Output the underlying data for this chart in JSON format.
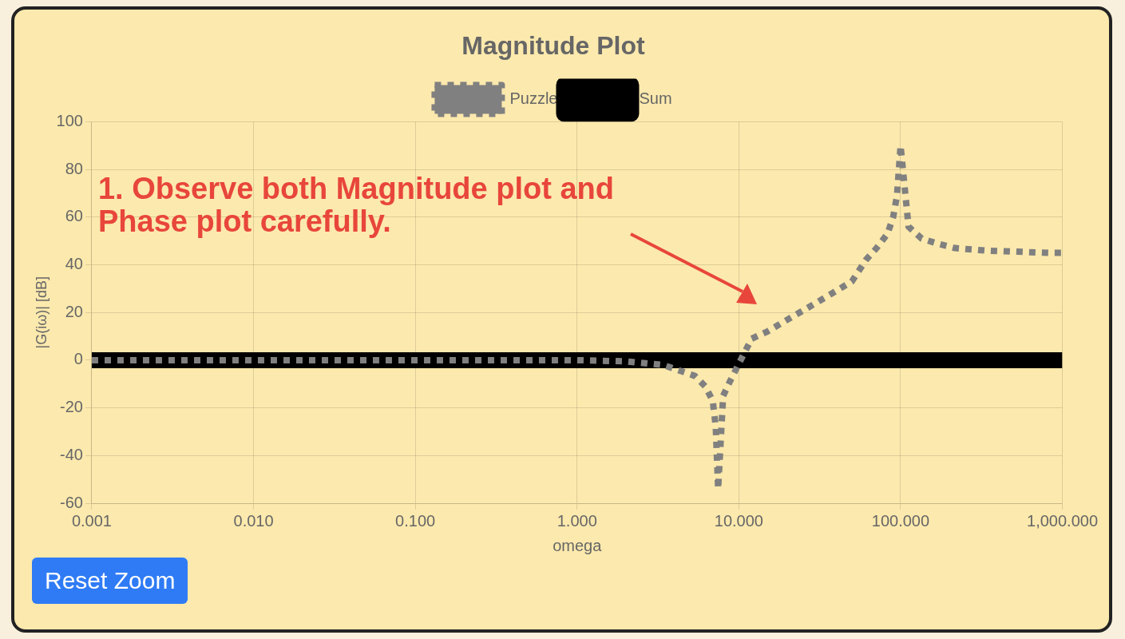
{
  "chart_data": {
    "type": "line",
    "title": "Magnitude Plot",
    "xlabel": "omega",
    "ylabel": "|G(iω)| [dB]",
    "log": "x",
    "xlim": [
      0.001,
      1000
    ],
    "ylim": [
      -60,
      100
    ],
    "xticks": [
      0.001,
      {
        "value": 0.01,
        "label": "0.010"
      },
      {
        "value": 0.1,
        "label": "0.100"
      },
      {
        "value": 1,
        "label": "1.000"
      },
      {
        "value": 10,
        "label": "10.000"
      },
      {
        "value": 100,
        "label": "100.000"
      },
      {
        "value": 1000,
        "label": "1,000.000"
      }
    ],
    "yticks": [
      -60,
      -40,
      -20,
      0,
      20,
      40,
      60,
      80,
      100
    ],
    "grid": true,
    "legend": "top",
    "marker": "none",
    "series": [
      {
        "name": "Puzzle",
        "color": "#808080",
        "line_style": "dashed",
        "x": [
          0.001,
          0.01,
          0.1,
          1,
          2,
          3.4,
          5.35,
          6.2,
          6.9,
          7.2,
          7.45,
          8.0,
          8.8,
          10,
          12,
          15,
          20,
          30,
          50,
          61,
          71,
          83,
          90,
          95,
          100,
          112,
          135,
          167,
          217,
          330,
          830,
          1000
        ],
        "values": [
          0,
          0,
          0,
          0,
          -0.5,
          -2,
          -6.6,
          -11,
          -17,
          -28,
          -54,
          -15,
          -9,
          -1.5,
          9,
          12,
          17,
          24,
          33,
          42,
          47,
          53,
          60,
          69,
          90,
          56,
          51,
          49,
          47,
          46,
          45,
          45
        ]
      },
      {
        "name": "Sum",
        "color": "#000000",
        "line_style": "solid",
        "x": [
          0.001,
          1000
        ],
        "values": [
          0,
          0
        ]
      }
    ],
    "annotations": [
      "1. Observe both Magnitude plot and Phase plot carefully.",
      "Reset Zoom"
    ]
  }
}
